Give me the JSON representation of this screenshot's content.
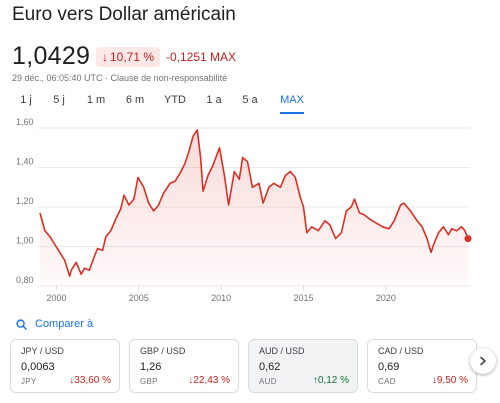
{
  "header": {
    "title": "Euro vers Dollar américain",
    "price": "1,0429",
    "change_pct": "10,71 %",
    "change_abs": "-0,1251 MAX",
    "meta": "29 déc., 06:05:40 UTC · Clause de non-responsabilité"
  },
  "tabs": [
    "1 j",
    "5 j",
    "1 m",
    "6 m",
    "YTD",
    "1 a",
    "5 a",
    "MAX"
  ],
  "active_tab": "MAX",
  "chart_data": {
    "type": "area",
    "title": "",
    "xlabel": "",
    "ylabel": "",
    "ylim": [
      0.8,
      1.6
    ],
    "xlim": [
      1999.0,
      2024.99
    ],
    "y_ticks": [
      "0,80",
      "1,00",
      "1,20",
      "1,40",
      "1,60"
    ],
    "x_ticks": [
      "2000",
      "2005",
      "2010",
      "2015",
      "2020"
    ],
    "grid": true,
    "line_color": "#d93025",
    "series": [
      {
        "x": [
          1999.0,
          1999.3,
          1999.6,
          1999.9,
          2000.2,
          2000.5,
          2000.8,
          2000.9,
          2001.2,
          2001.5,
          2001.7,
          2002.0,
          2002.3,
          2002.5,
          2002.8,
          2003.0,
          2003.3,
          2003.6,
          2003.9,
          2004.1,
          2004.4,
          2004.7,
          2004.95,
          2005.3,
          2005.6,
          2005.9,
          2006.2,
          2006.5,
          2006.9,
          2007.2,
          2007.5,
          2007.8,
          2008.0,
          2008.3,
          2008.55,
          2008.75,
          2008.9,
          2009.2,
          2009.5,
          2009.9,
          2010.2,
          2010.45,
          2010.8,
          2011.1,
          2011.3,
          2011.6,
          2011.9,
          2012.3,
          2012.55,
          2012.9,
          2013.2,
          2013.6,
          2013.9,
          2014.2,
          2014.5,
          2014.8,
          2015.0,
          2015.2,
          2015.5,
          2015.9,
          2016.3,
          2016.6,
          2016.95,
          2017.3,
          2017.6,
          2017.9,
          2018.1,
          2018.4,
          2018.7,
          2019.0,
          2019.4,
          2019.8,
          2020.2,
          2020.5,
          2020.9,
          2021.1,
          2021.5,
          2021.9,
          2022.2,
          2022.5,
          2022.75,
          2022.9,
          2023.2,
          2023.5,
          2023.8,
          2024.0,
          2024.3,
          2024.6,
          2024.8,
          2024.99
        ],
        "y": [
          1.17,
          1.08,
          1.05,
          1.01,
          0.97,
          0.93,
          0.85,
          0.88,
          0.92,
          0.86,
          0.89,
          0.88,
          0.95,
          0.99,
          0.98,
          1.05,
          1.08,
          1.14,
          1.19,
          1.26,
          1.21,
          1.24,
          1.35,
          1.3,
          1.22,
          1.18,
          1.21,
          1.27,
          1.32,
          1.33,
          1.37,
          1.42,
          1.47,
          1.56,
          1.59,
          1.45,
          1.28,
          1.36,
          1.41,
          1.5,
          1.36,
          1.21,
          1.38,
          1.34,
          1.45,
          1.43,
          1.3,
          1.32,
          1.22,
          1.3,
          1.32,
          1.3,
          1.36,
          1.38,
          1.35,
          1.25,
          1.2,
          1.07,
          1.1,
          1.08,
          1.13,
          1.11,
          1.04,
          1.07,
          1.18,
          1.2,
          1.24,
          1.17,
          1.16,
          1.14,
          1.12,
          1.1,
          1.09,
          1.13,
          1.21,
          1.22,
          1.18,
          1.13,
          1.1,
          1.04,
          0.97,
          1.01,
          1.07,
          1.1,
          1.06,
          1.09,
          1.08,
          1.1,
          1.08,
          1.04
        ]
      }
    ]
  },
  "compare": {
    "label": "Comparer à"
  },
  "cards": [
    {
      "pair": "JPY / USD",
      "value": "0,0063",
      "code": "JPY",
      "pct": "33,60 %",
      "direction": "down"
    },
    {
      "pair": "GBP / USD",
      "value": "1,26",
      "code": "GBP",
      "pct": "22,43 %",
      "direction": "down"
    },
    {
      "pair": "AUD / USD",
      "value": "0,62",
      "code": "AUD",
      "pct": "0,12 %",
      "direction": "up"
    },
    {
      "pair": "CAD / USD",
      "value": "0,69",
      "code": "CAD",
      "pct": "9,50 %",
      "direction": "down"
    }
  ],
  "icons": {
    "compare": "search-icon",
    "next": "chevron-right-icon"
  }
}
